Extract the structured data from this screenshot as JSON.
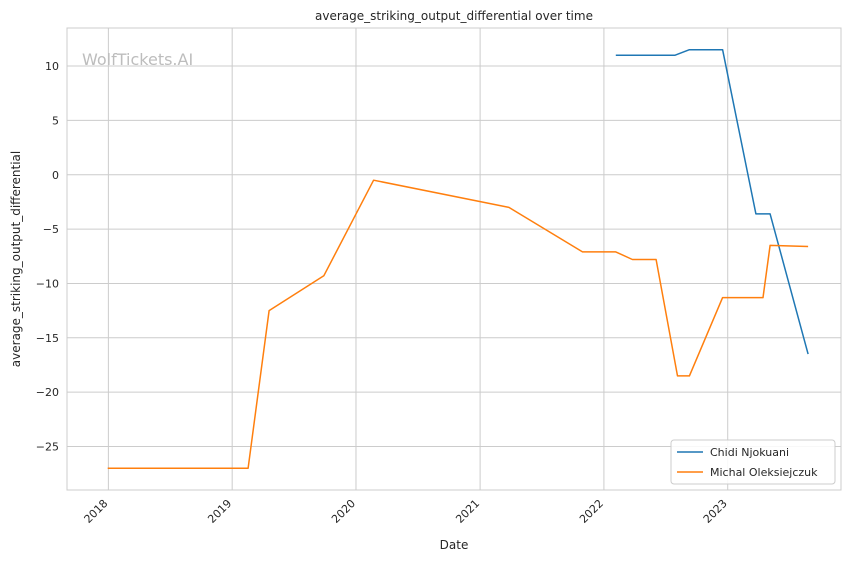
{
  "chart_data": {
    "type": "line",
    "title": "average_striking_output_differential over time",
    "xlabel": "Date",
    "ylabel": "average_striking_output_differential",
    "watermark": "WolfTickets.AI",
    "x_ticks": [
      "2018",
      "2019",
      "2020",
      "2021",
      "2022",
      "2023"
    ],
    "y_ticks": [
      10,
      5,
      0,
      -5,
      -10,
      -15,
      -20,
      -25
    ],
    "xlim": [
      "2017-09",
      "2023-12"
    ],
    "ylim": [
      -29.0,
      13.5
    ],
    "grid": true,
    "legend_position": "lower-right",
    "series": [
      {
        "name": "Chidi Njokuani",
        "color": "#1f77b4",
        "points": [
          {
            "x": "2022-02-05",
            "y": 11.0
          },
          {
            "x": "2022-07-30",
            "y": 11.0
          },
          {
            "x": "2022-09-10",
            "y": 11.5
          },
          {
            "x": "2022-12-17",
            "y": 11.5
          },
          {
            "x": "2023-03-25",
            "y": -3.6
          },
          {
            "x": "2023-05-06",
            "y": -3.6
          },
          {
            "x": "2023-08-26",
            "y": -16.5
          }
        ]
      },
      {
        "name": "Michal Oleksiejczuk",
        "color": "#ff7f0e",
        "points": [
          {
            "x": "2017-12-30",
            "y": -27.0
          },
          {
            "x": "2019-02-17",
            "y": -27.0
          },
          {
            "x": "2019-04-20",
            "y": -12.5
          },
          {
            "x": "2019-09-28",
            "y": -9.3
          },
          {
            "x": "2020-02-22",
            "y": -0.5
          },
          {
            "x": "2021-03-27",
            "y": -3.0
          },
          {
            "x": "2021-10-30",
            "y": -7.1
          },
          {
            "x": "2022-02-05",
            "y": -7.1
          },
          {
            "x": "2022-03-26",
            "y": -7.8
          },
          {
            "x": "2022-06-04",
            "y": -7.8
          },
          {
            "x": "2022-08-06",
            "y": -18.5
          },
          {
            "x": "2022-09-10",
            "y": -18.5
          },
          {
            "x": "2022-12-17",
            "y": -11.3
          },
          {
            "x": "2023-04-15",
            "y": -11.3
          },
          {
            "x": "2023-05-06",
            "y": -6.5
          },
          {
            "x": "2023-08-26",
            "y": -6.6
          }
        ]
      }
    ]
  }
}
